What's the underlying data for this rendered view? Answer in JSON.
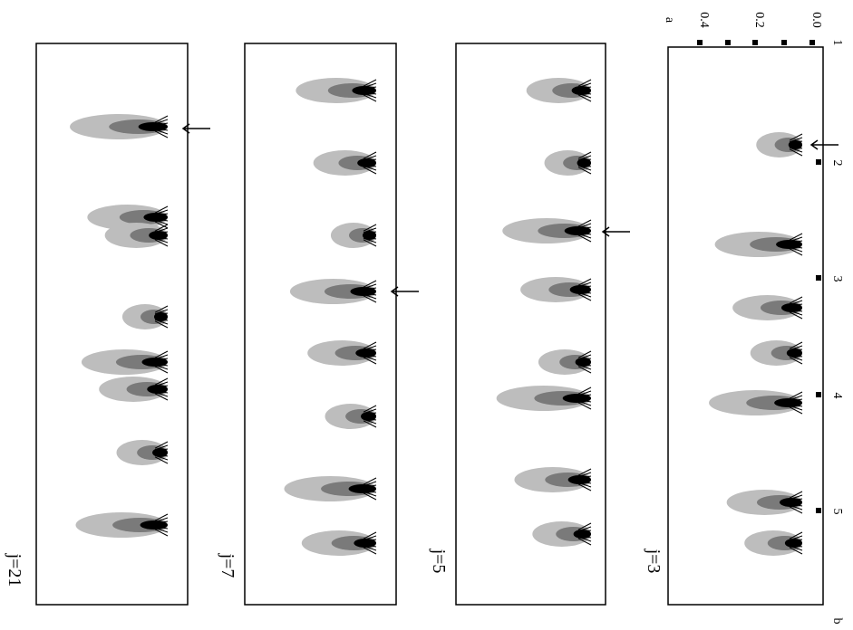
{
  "figure": {
    "x_axis": {
      "ticks": [
        "1",
        "2",
        "3",
        "4",
        "5"
      ],
      "label": "b"
    },
    "y_axis": {
      "ticks": [
        "0.0",
        "0.2",
        "0.4"
      ],
      "label": "a"
    },
    "panels": [
      {
        "label": "j=3"
      },
      {
        "label": "j=5"
      },
      {
        "label": "j=7"
      },
      {
        "label": "j=21"
      }
    ]
  }
}
